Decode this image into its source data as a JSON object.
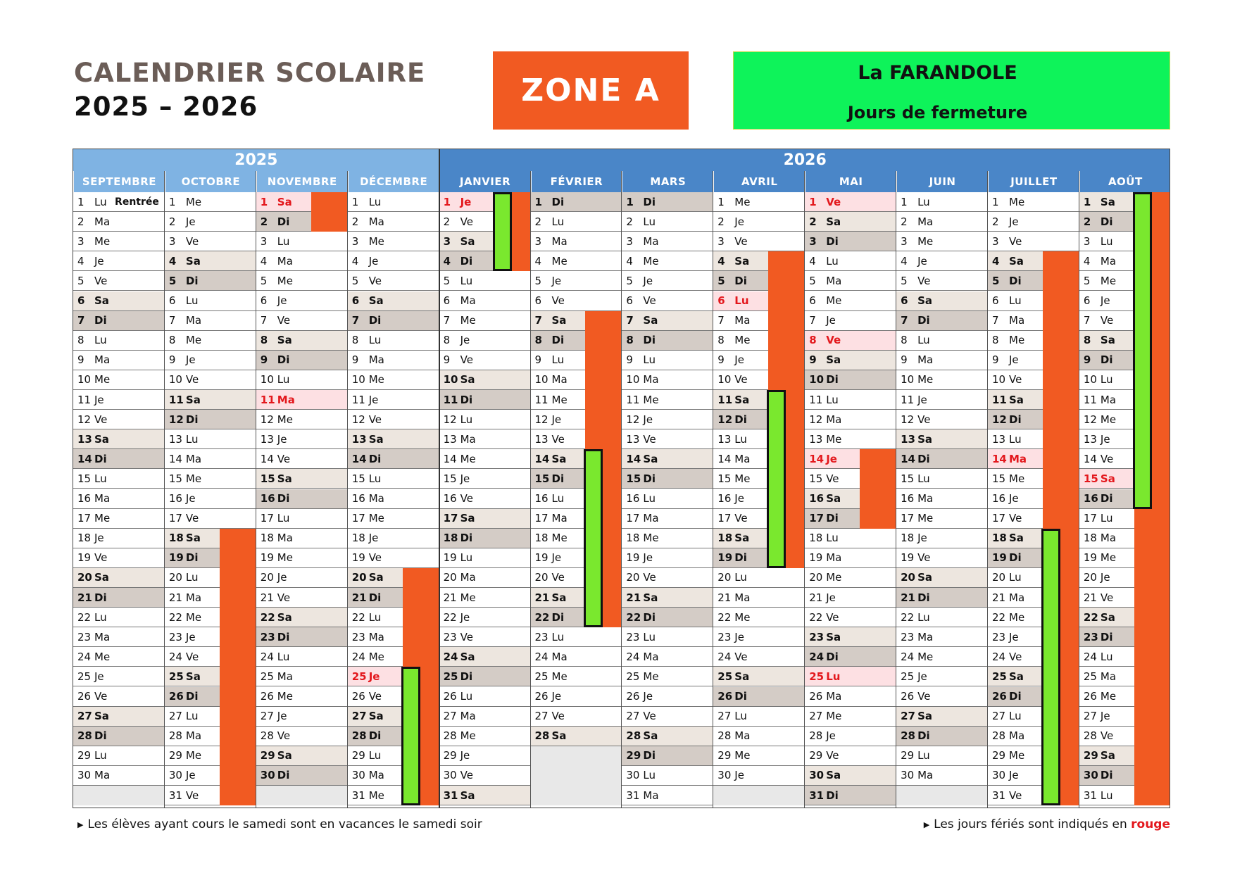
{
  "header": {
    "title_line1": "CALENDRIER SCOLAIRE",
    "title_line2": "2025 – 2026",
    "zone": "ZONE A",
    "school": "La FARANDOLE",
    "closure_label": "Jours de fermeture"
  },
  "colors": {
    "vacation": "#f15a22",
    "closure": "#7ae82e",
    "holiday_text": "#e3181d",
    "year_2025": "#7fb3e3",
    "year_2026": "#4a86c8"
  },
  "years": [
    "2025",
    "2026"
  ],
  "months": [
    {
      "name": "SEPTEMBRE",
      "year": "2025",
      "first": "Lu",
      "days": 30,
      "holidays": [],
      "note_day": 1,
      "note": "Rentrée"
    },
    {
      "name": "OCTOBRE",
      "year": "2025",
      "first": "Me",
      "days": 31,
      "holidays": []
    },
    {
      "name": "NOVEMBRE",
      "year": "2025",
      "first": "Sa",
      "days": 30,
      "holidays": [
        1,
        11
      ]
    },
    {
      "name": "DÉCEMBRE",
      "year": "2025",
      "first": "Lu",
      "days": 31,
      "holidays": [
        25
      ]
    },
    {
      "name": "JANVIER",
      "year": "2026",
      "first": "Je",
      "days": 31,
      "holidays": [
        1
      ]
    },
    {
      "name": "FÉVRIER",
      "year": "2026",
      "first": "Di",
      "days": 28,
      "holidays": []
    },
    {
      "name": "MARS",
      "year": "2026",
      "first": "Di",
      "days": 31,
      "holidays": []
    },
    {
      "name": "AVRIL",
      "year": "2026",
      "first": "Me",
      "days": 30,
      "holidays": [
        6
      ]
    },
    {
      "name": "MAI",
      "year": "2026",
      "first": "Ve",
      "days": 31,
      "holidays": [
        1,
        8,
        14,
        25
      ]
    },
    {
      "name": "JUIN",
      "year": "2026",
      "first": "Lu",
      "days": 30,
      "holidays": []
    },
    {
      "name": "JUILLET",
      "year": "2026",
      "first": "Me",
      "days": 31,
      "holidays": [
        14
      ]
    },
    {
      "name": "AOÛT",
      "year": "2026",
      "first": "Sa",
      "days": 31,
      "holidays": [
        15
      ]
    }
  ],
  "vacations": [
    {
      "month": 1,
      "from": 18,
      "to": 31
    },
    {
      "month": 2,
      "from": 1,
      "to": 2
    },
    {
      "month": 3,
      "from": 20,
      "to": 31
    },
    {
      "month": 4,
      "from": 1,
      "to": 4
    },
    {
      "month": 5,
      "from": 7,
      "to": 22
    },
    {
      "month": 7,
      "from": 4,
      "to": 19
    },
    {
      "month": 8,
      "from": 14,
      "to": 17
    },
    {
      "month": 10,
      "from": 4,
      "to": 31
    },
    {
      "month": 11,
      "from": 1,
      "to": 31
    }
  ],
  "closures": [
    {
      "month": 3,
      "from": 25,
      "to": 31
    },
    {
      "month": 4,
      "from": 1,
      "to": 4
    },
    {
      "month": 5,
      "from": 14,
      "to": 22
    },
    {
      "month": 7,
      "from": 11,
      "to": 19
    },
    {
      "month": 10,
      "from": 18,
      "to": 31
    },
    {
      "month": 11,
      "from": 1,
      "to": 16
    }
  ],
  "footer": {
    "left": "Les élèves ayant cours le samedi sont en vacances le samedi soir",
    "right_prefix": "Les jours fériés sont indiqués en ",
    "right_red": "rouge"
  }
}
